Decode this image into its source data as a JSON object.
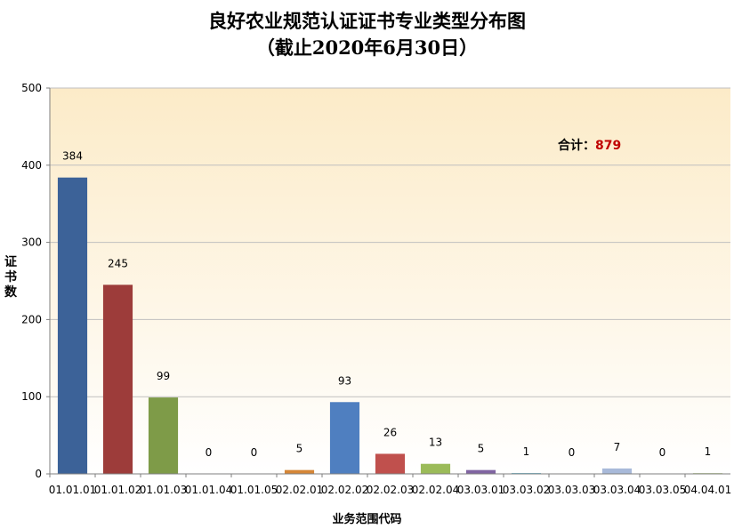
{
  "title_line1": "良好农业规范认证证书专业类型分布图",
  "title_line2": "（截止2020年6月30日）",
  "total_label": "合计：",
  "total_value": "879",
  "chart_data": {
    "type": "bar",
    "categories": [
      "01.01.01",
      "01.01.02",
      "01.01.03",
      "01.01.04",
      "01.01.05",
      "02.02.01",
      "02.02.02",
      "02.02.03",
      "02.02.04",
      "03.03.01",
      "03.03.02",
      "03.03.03",
      "03.03.04",
      "03.03.05",
      "04.04.01"
    ],
    "values": [
      384,
      245,
      99,
      0,
      0,
      5,
      93,
      26,
      13,
      5,
      1,
      0,
      7,
      0,
      1
    ],
    "colors": [
      "#3c6298",
      "#9d3c3a",
      "#7e9b48",
      "#6a4f86",
      "#358ca4",
      "#d58637",
      "#4f7fc0",
      "#c0504d",
      "#9bbb59",
      "#8064a2",
      "#4bacc6",
      "#f79646",
      "#a8b9d9",
      "#d99694",
      "#b8cc8c"
    ],
    "xlabel": "业务范围代码",
    "ylabel": "证书数",
    "ylim": [
      0,
      500
    ],
    "yticks": [
      0,
      100,
      200,
      300,
      400,
      500
    ],
    "grid": true,
    "data_labels": true
  }
}
